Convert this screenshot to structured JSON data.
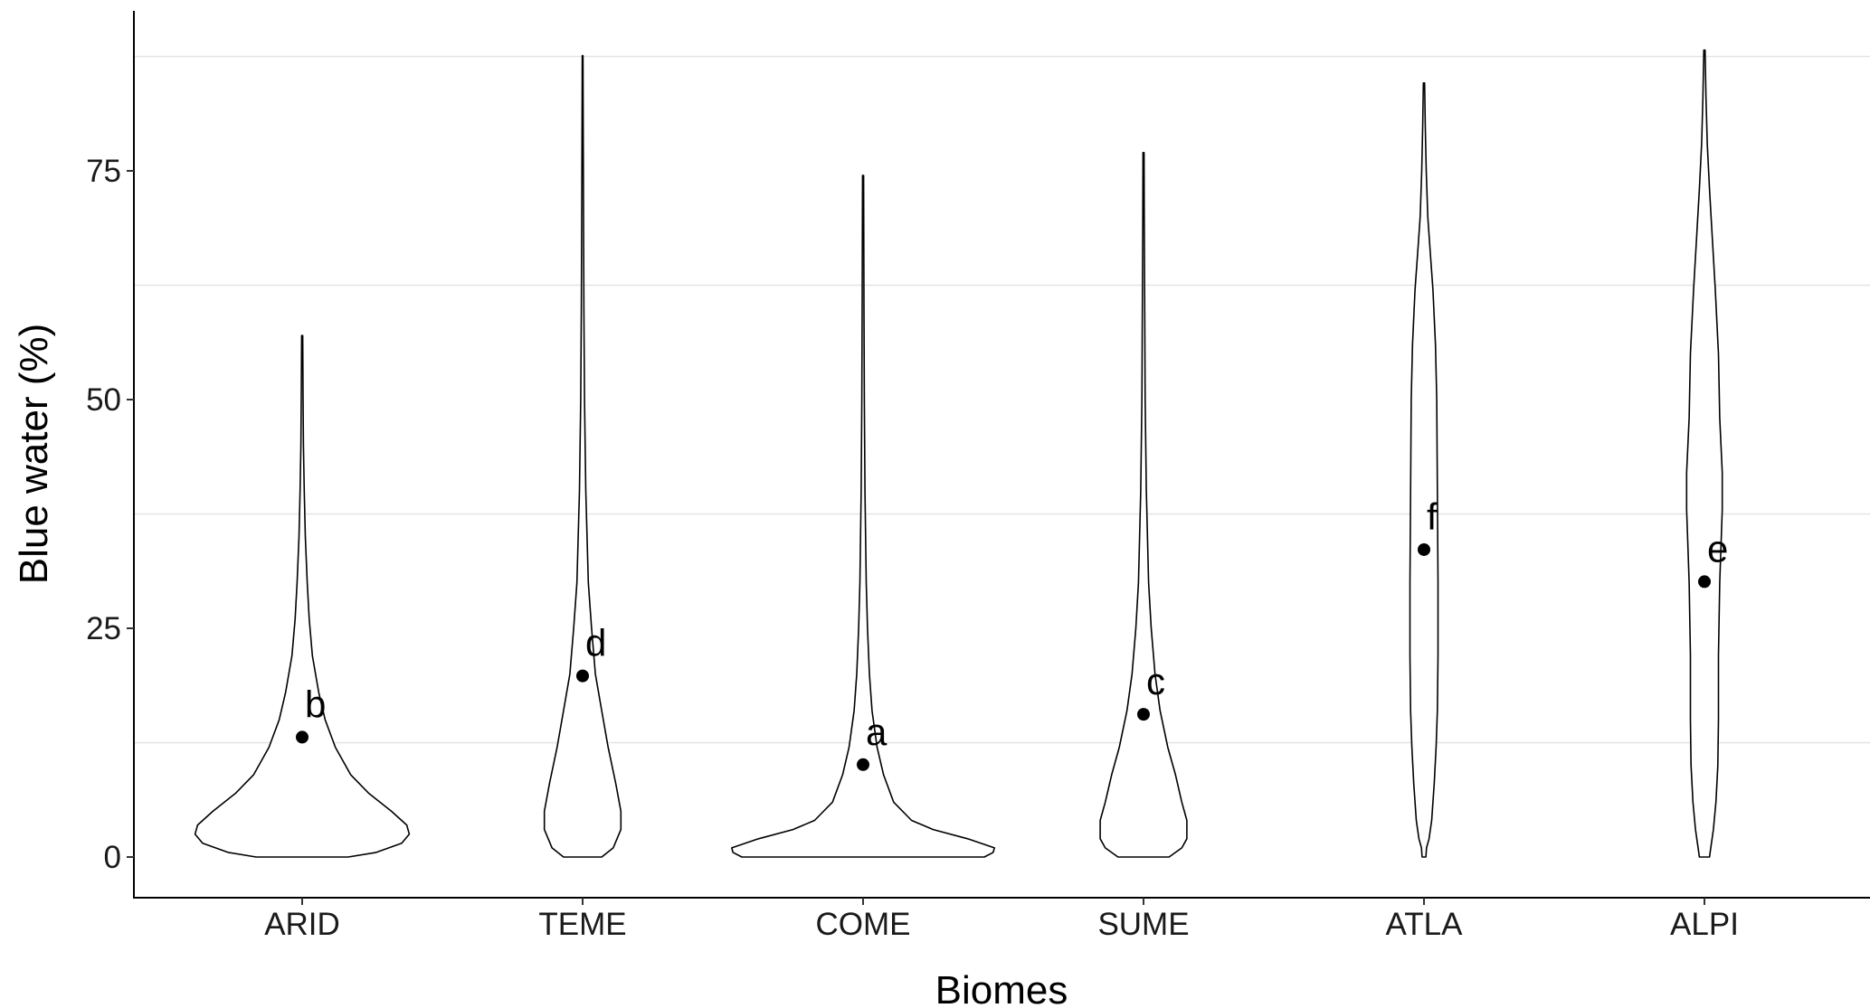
{
  "chart_data": {
    "type": "violin",
    "xlabel": "Biomes",
    "ylabel": "Blue water (%)",
    "categories": [
      "ARID",
      "TEME",
      "COME",
      "SUME",
      "ATLA",
      "ALPI"
    ],
    "ylim": [
      -3,
      93
    ],
    "yticks": [
      0,
      25,
      50,
      75
    ],
    "grid": "horizontal minor lines only",
    "legend": "none",
    "colors": {
      "outline": "#000000",
      "fill": "#ffffff",
      "grid": "#e4e4e4"
    },
    "groups": [
      {
        "category": "ARID",
        "mean": 13.1,
        "letter": "b",
        "max": 57,
        "profile": [
          [
            0,
            0.36
          ],
          [
            0.5,
            0.58
          ],
          [
            1.5,
            0.78
          ],
          [
            2.5,
            0.84
          ],
          [
            3.5,
            0.82
          ],
          [
            5,
            0.7
          ],
          [
            7,
            0.52
          ],
          [
            9,
            0.38
          ],
          [
            12,
            0.26
          ],
          [
            15,
            0.18
          ],
          [
            18,
            0.13
          ],
          [
            22,
            0.08
          ],
          [
            26,
            0.055
          ],
          [
            30,
            0.04
          ],
          [
            35,
            0.025
          ],
          [
            40,
            0.016
          ],
          [
            45,
            0.01
          ],
          [
            50,
            0.007
          ],
          [
            57,
            0.004
          ]
        ]
      },
      {
        "category": "TEME",
        "mean": 19.8,
        "letter": "d",
        "max": 87.6,
        "profile": [
          [
            0,
            0.15
          ],
          [
            1,
            0.24
          ],
          [
            3,
            0.3
          ],
          [
            5,
            0.3
          ],
          [
            8,
            0.26
          ],
          [
            12,
            0.2
          ],
          [
            16,
            0.15
          ],
          [
            20,
            0.1
          ],
          [
            25,
            0.07
          ],
          [
            30,
            0.045
          ],
          [
            40,
            0.025
          ],
          [
            50,
            0.015
          ],
          [
            60,
            0.01
          ],
          [
            70,
            0.007
          ],
          [
            78,
            0.005
          ],
          [
            87.6,
            0.003
          ]
        ]
      },
      {
        "category": "COME",
        "mean": 10.1,
        "letter": "a",
        "max": 74.5,
        "profile": [
          [
            0,
            0.95
          ],
          [
            0.5,
            1.02
          ],
          [
            1,
            1.03
          ],
          [
            2,
            0.82
          ],
          [
            3,
            0.55
          ],
          [
            4,
            0.38
          ],
          [
            6,
            0.24
          ],
          [
            9,
            0.16
          ],
          [
            12,
            0.11
          ],
          [
            16,
            0.07
          ],
          [
            20,
            0.05
          ],
          [
            25,
            0.035
          ],
          [
            30,
            0.025
          ],
          [
            40,
            0.015
          ],
          [
            50,
            0.01
          ],
          [
            60,
            0.007
          ],
          [
            74.5,
            0.004
          ]
        ]
      },
      {
        "category": "SUME",
        "mean": 15.6,
        "letter": "c",
        "max": 77,
        "profile": [
          [
            0,
            0.2
          ],
          [
            1,
            0.3
          ],
          [
            2,
            0.34
          ],
          [
            4,
            0.34
          ],
          [
            6,
            0.3
          ],
          [
            9,
            0.25
          ],
          [
            12,
            0.19
          ],
          [
            16,
            0.13
          ],
          [
            20,
            0.09
          ],
          [
            25,
            0.06
          ],
          [
            30,
            0.04
          ],
          [
            40,
            0.022
          ],
          [
            50,
            0.013
          ],
          [
            60,
            0.009
          ],
          [
            70,
            0.006
          ],
          [
            77,
            0.004
          ]
        ]
      },
      {
        "category": "ATLA",
        "mean": 33.6,
        "letter": "f",
        "max": 84.6,
        "profile": [
          [
            0,
            0.015
          ],
          [
            1,
            0.02
          ],
          [
            2,
            0.04
          ],
          [
            4,
            0.06
          ],
          [
            8,
            0.08
          ],
          [
            12,
            0.095
          ],
          [
            16,
            0.105
          ],
          [
            22,
            0.11
          ],
          [
            30,
            0.11
          ],
          [
            40,
            0.105
          ],
          [
            50,
            0.1
          ],
          [
            56,
            0.09
          ],
          [
            62,
            0.07
          ],
          [
            66,
            0.05
          ],
          [
            70,
            0.03
          ],
          [
            75,
            0.018
          ],
          [
            80,
            0.01
          ],
          [
            84.6,
            0.005
          ]
        ]
      },
      {
        "category": "ALPI",
        "mean": 30.1,
        "letter": "e",
        "max": 88.2,
        "profile": [
          [
            0,
            0.04
          ],
          [
            1,
            0.05
          ],
          [
            3,
            0.07
          ],
          [
            6,
            0.09
          ],
          [
            10,
            0.105
          ],
          [
            15,
            0.11
          ],
          [
            22,
            0.11
          ],
          [
            30,
            0.12
          ],
          [
            38,
            0.14
          ],
          [
            42,
            0.14
          ],
          [
            48,
            0.12
          ],
          [
            55,
            0.11
          ],
          [
            62,
            0.085
          ],
          [
            68,
            0.06
          ],
          [
            73,
            0.04
          ],
          [
            78,
            0.022
          ],
          [
            83,
            0.012
          ],
          [
            88.2,
            0.005
          ]
        ]
      }
    ]
  }
}
